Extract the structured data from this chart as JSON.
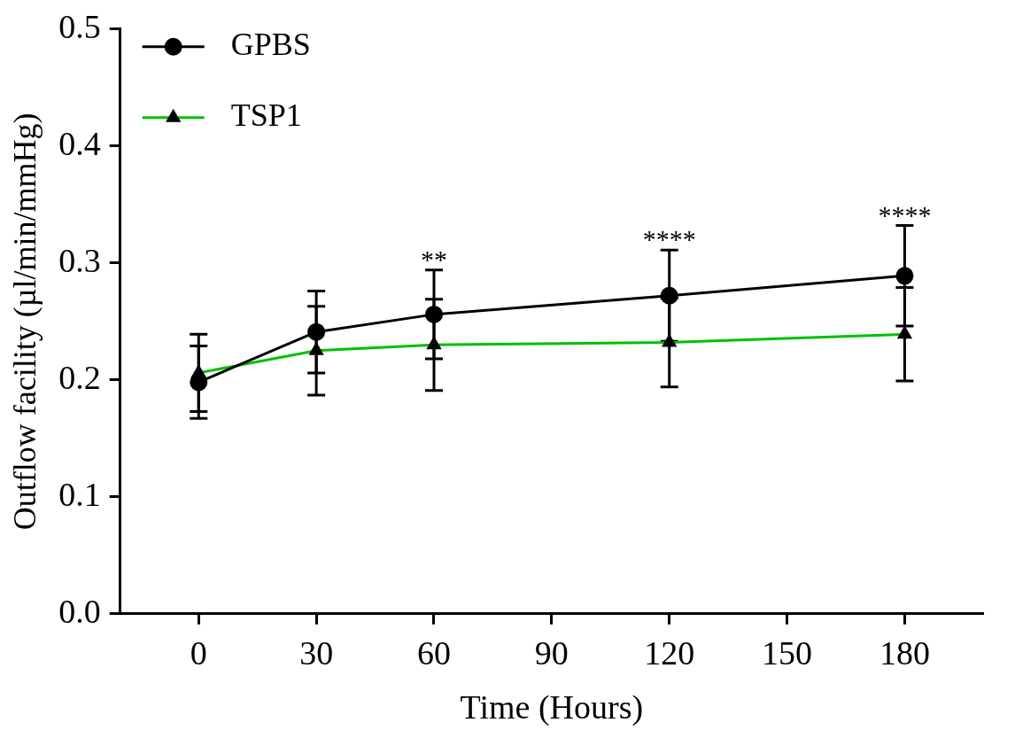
{
  "chart_data": {
    "type": "line",
    "xlabel": "Time (Hours)",
    "ylabel": "Outflow facility (µl/min/mmHg)",
    "x": [
      0,
      30,
      60,
      120,
      180
    ],
    "series": [
      {
        "name": "GPBS",
        "color": "#000000",
        "marker": "circle",
        "values": [
          0.198,
          0.241,
          0.256,
          0.272,
          0.289
        ],
        "errors": [
          0.031,
          0.035,
          0.038,
          0.039,
          0.043
        ]
      },
      {
        "name": "TSP1",
        "color": "#00c000",
        "marker": "triangle",
        "values": [
          0.206,
          0.225,
          0.23,
          0.232,
          0.239
        ],
        "errors": [
          0.033,
          0.038,
          0.039,
          0.038,
          0.04
        ]
      }
    ],
    "xlim": [
      -20,
      200
    ],
    "xticks": [
      0,
      30,
      60,
      90,
      120,
      150,
      180
    ],
    "ylim": [
      0,
      0.5
    ],
    "yticks": [
      {
        "value": 0,
        "label": "0.0"
      },
      {
        "value": 0.1,
        "label": "0.1"
      },
      {
        "value": 0.2,
        "label": "0.2"
      },
      {
        "value": 0.3,
        "label": "0.3"
      },
      {
        "value": 0.4,
        "label": "0.4"
      },
      {
        "value": 0.5,
        "label": "0.5"
      }
    ],
    "annotations": [
      {
        "text": "**",
        "x": 60,
        "y": 0.294
      },
      {
        "text": "****",
        "x": 120,
        "y": 0.311
      },
      {
        "text": "****",
        "x": 180,
        "y": 0.332
      }
    ],
    "grid": false,
    "legend": "top left",
    "line_style": "solid"
  }
}
